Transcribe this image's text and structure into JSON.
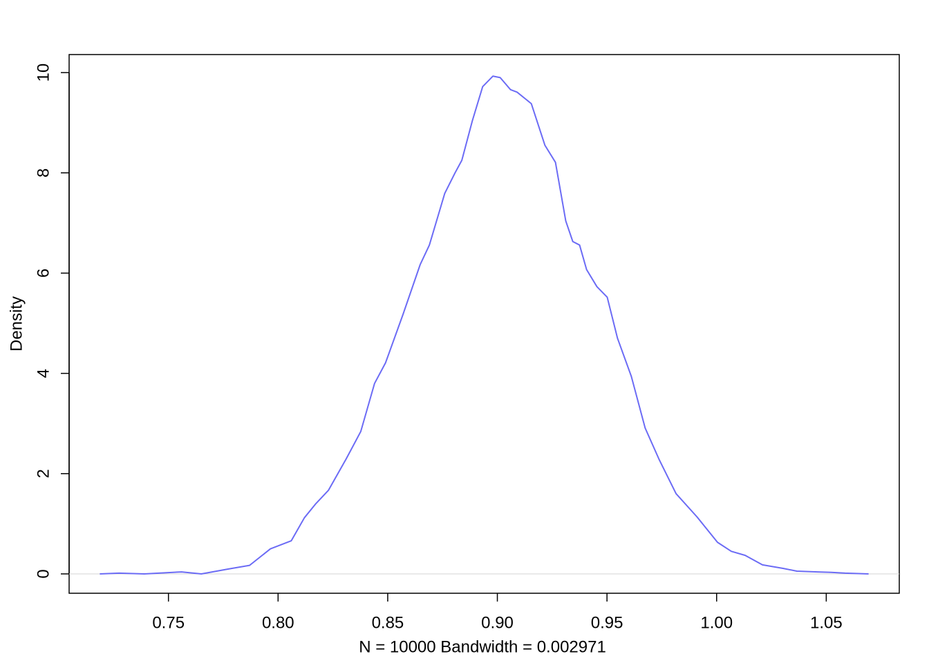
{
  "chart_data": {
    "type": "line",
    "x_label": "N = 10000   Bandwidth = 0.002971",
    "y_label": "Density",
    "series": [
      {
        "name": "density",
        "color": "#6b6bf5",
        "x": [
          0.7187,
          0.7275,
          0.739,
          0.756,
          0.765,
          0.7776,
          0.787,
          0.7965,
          0.806,
          0.812,
          0.817,
          0.823,
          0.831,
          0.8377,
          0.844,
          0.849,
          0.857,
          0.8648,
          0.869,
          0.876,
          0.8807,
          0.8838,
          0.8886,
          0.8933,
          0.898,
          0.9013,
          0.906,
          0.909,
          0.9155,
          0.9217,
          0.9265,
          0.9312,
          0.9344,
          0.9375,
          0.9407,
          0.9454,
          0.9501,
          0.9548,
          0.9611,
          0.9674,
          0.9737,
          0.9815,
          0.991,
          1.0004,
          1.0067,
          1.013,
          1.0209,
          1.0303,
          1.0366,
          1.046,
          1.0523,
          1.0586,
          1.0693
        ],
        "values": [
          0,
          0.015,
          0,
          0.04,
          0,
          0.1,
          0.17,
          0.5,
          0.66,
          1.12,
          1.39,
          1.67,
          2.29,
          2.84,
          3.8,
          4.21,
          5.18,
          6.17,
          6.56,
          7.59,
          8.0,
          8.25,
          9.04,
          9.72,
          9.93,
          9.9,
          9.66,
          9.61,
          9.38,
          8.55,
          8.21,
          7.04,
          6.63,
          6.56,
          6.07,
          5.73,
          5.52,
          4.7,
          3.94,
          2.91,
          2.29,
          1.6,
          1.14,
          0.63,
          0.45,
          0.37,
          0.18,
          0.11,
          0.055,
          0.04,
          0.03,
          0.015,
          0
        ]
      }
    ],
    "xlim": [
      0.7047,
      1.0833
    ],
    "ylim": [
      -0.386,
      10.36
    ],
    "xticks": [
      {
        "value": 0.75,
        "label": "0.75"
      },
      {
        "value": 0.8,
        "label": "0.80"
      },
      {
        "value": 0.85,
        "label": "0.85"
      },
      {
        "value": 0.9,
        "label": "0.90"
      },
      {
        "value": 0.95,
        "label": "0.95"
      },
      {
        "value": 1.0,
        "label": "1.00"
      },
      {
        "value": 1.05,
        "label": "1.05"
      }
    ],
    "yticks": [
      0,
      2,
      4,
      6,
      8,
      10
    ],
    "hline": 0,
    "grid": false
  }
}
